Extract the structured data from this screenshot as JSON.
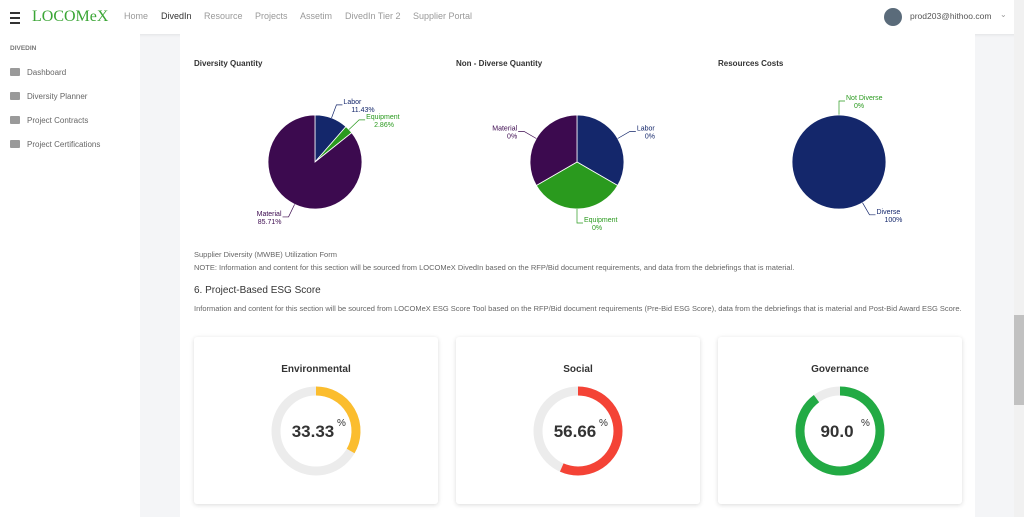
{
  "header": {
    "logo": "LOCOMeX",
    "nav": [
      "Home",
      "DivedIn",
      "Resource",
      "Projects",
      "Assetim",
      "DivedIn Tier 2",
      "Supplier Portal"
    ],
    "active_nav": 1,
    "user": "prod203@hithoo.com"
  },
  "sidebar": {
    "section": "DIVEDIN",
    "items": [
      "Dashboard",
      "Diversity Planner",
      "Project Contracts",
      "Project Certifications"
    ]
  },
  "chart_data": [
    {
      "type": "pie",
      "title": "Diversity Quantity",
      "categories": [
        "Labor",
        "Equipment",
        "Material"
      ],
      "values": [
        11.43,
        2.86,
        85.71
      ],
      "value_labels": [
        "11.43%",
        "2.86%",
        "85.71%"
      ],
      "colors": [
        "#14276b",
        "#2a9a1e",
        "#3c0a4f"
      ]
    },
    {
      "type": "pie",
      "title": "Non - Diverse Quantity",
      "categories": [
        "Labor",
        "Equipment",
        "Material"
      ],
      "values": [
        0,
        0,
        0
      ],
      "value_labels": [
        "0%",
        "0%",
        "0%"
      ],
      "colors": [
        "#14276b",
        "#2a9a1e",
        "#3c0a4f"
      ]
    },
    {
      "type": "pie",
      "title": "Resources Costs",
      "categories": [
        "Not Diverse",
        "Diverse"
      ],
      "values": [
        0,
        100
      ],
      "value_labels": [
        "0%",
        "100%"
      ],
      "colors": [
        "#2a9a1e",
        "#14276b"
      ]
    },
    {
      "type": "gauge",
      "title": "Environmental",
      "value": 33.33,
      "unit": "%",
      "ylim": [
        0,
        100
      ],
      "color": "#fbbd2e"
    },
    {
      "type": "gauge",
      "title": "Social",
      "value": 56.66,
      "unit": "%",
      "ylim": [
        0,
        100
      ],
      "color": "#f44336"
    },
    {
      "type": "gauge",
      "title": "Governance",
      "value": 90,
      "value_label": "90.0",
      "unit": "%",
      "ylim": [
        0,
        100
      ],
      "color": "#22aa44"
    }
  ],
  "form": {
    "title": "Supplier Diversity (MWBE) Utilization Form",
    "note": "NOTE: Information and content for this section will be sourced from LOCOMeX DivedIn based on the RFP/Bid document requirements, and data from the debriefings that is material."
  },
  "esg": {
    "heading": "6. Project-Based ESG Score",
    "text": "Information and content for this section will be sourced from LOCOMeX ESG Score Tool based on the RFP/Bid document requirements (Pre-Bid ESG Score), data from the debriefings that is material and Post-Bid Award ESG Score."
  }
}
